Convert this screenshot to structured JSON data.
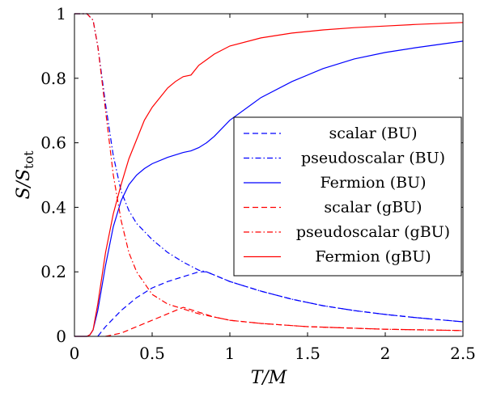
{
  "chart_data": {
    "type": "line",
    "xlabel_main": "T/M",
    "ylabel_main": "S/S",
    "ylabel_sub": "tot",
    "xlim": [
      0,
      2.5
    ],
    "ylim": [
      0,
      1
    ],
    "xticks": [
      "0",
      "0.5",
      "1",
      "1.5",
      "2",
      "2.5"
    ],
    "xtick_values": [
      0,
      0.5,
      1,
      1.5,
      2,
      2.5
    ],
    "yticks": [
      "0",
      "0.2",
      "0.4",
      "0.6",
      "0.8",
      "1"
    ],
    "ytick_values": [
      0,
      0.2,
      0.4,
      0.6,
      0.8,
      1
    ],
    "grid": false,
    "legend_position": "center-right",
    "series": [
      {
        "name": "scalar (BU)",
        "color": "#0000ff",
        "style": "dashed",
        "x": [
          0.15,
          0.2,
          0.3,
          0.4,
          0.5,
          0.6,
          0.7,
          0.8,
          0.85,
          0.9,
          1.0,
          1.2,
          1.4,
          1.6,
          1.8,
          2.0,
          2.2,
          2.5
        ],
        "y": [
          0.0,
          0.03,
          0.08,
          0.12,
          0.15,
          0.17,
          0.185,
          0.2,
          0.2,
          0.19,
          0.17,
          0.14,
          0.115,
          0.095,
          0.08,
          0.068,
          0.058,
          0.045
        ]
      },
      {
        "name": "pseudoscalar (BU)",
        "color": "#0000ff",
        "style": "dashdot",
        "x": [
          0,
          0.08,
          0.12,
          0.15,
          0.2,
          0.25,
          0.3,
          0.35,
          0.4,
          0.5,
          0.6,
          0.7,
          0.8,
          0.85,
          0.9,
          1.0,
          1.2,
          1.4,
          1.6,
          1.8,
          2.0,
          2.2,
          2.5
        ],
        "y": [
          1.0,
          1.0,
          0.98,
          0.9,
          0.72,
          0.56,
          0.45,
          0.39,
          0.35,
          0.3,
          0.26,
          0.23,
          0.205,
          0.2,
          0.19,
          0.17,
          0.14,
          0.115,
          0.095,
          0.08,
          0.068,
          0.058,
          0.045
        ]
      },
      {
        "name": "Fermion (BU)",
        "color": "#0000ff",
        "style": "solid",
        "x": [
          0,
          0.05,
          0.08,
          0.1,
          0.12,
          0.15,
          0.2,
          0.25,
          0.3,
          0.35,
          0.4,
          0.45,
          0.5,
          0.6,
          0.7,
          0.75,
          0.8,
          0.85,
          0.9,
          1.0,
          1.2,
          1.4,
          1.6,
          1.8,
          2.0,
          2.2,
          2.5
        ],
        "y": [
          0,
          0,
          0,
          0.005,
          0.02,
          0.08,
          0.22,
          0.34,
          0.42,
          0.47,
          0.5,
          0.52,
          0.535,
          0.555,
          0.57,
          0.575,
          0.585,
          0.6,
          0.62,
          0.67,
          0.74,
          0.79,
          0.83,
          0.86,
          0.88,
          0.895,
          0.915
        ]
      },
      {
        "name": "scalar (gBU)",
        "color": "#ff0000",
        "style": "dashed",
        "x": [
          0.2,
          0.3,
          0.4,
          0.5,
          0.6,
          0.7,
          0.8,
          0.9,
          1.0,
          1.2,
          1.5,
          2.0,
          2.5
        ],
        "y": [
          0.0,
          0.01,
          0.03,
          0.05,
          0.07,
          0.09,
          0.075,
          0.06,
          0.05,
          0.04,
          0.03,
          0.022,
          0.018
        ]
      },
      {
        "name": "pseudoscalar (gBU)",
        "color": "#ff0000",
        "style": "dashdot",
        "x": [
          0,
          0.08,
          0.12,
          0.15,
          0.2,
          0.25,
          0.3,
          0.35,
          0.4,
          0.5,
          0.6,
          0.7,
          0.8,
          0.9,
          1.0,
          1.2,
          1.5,
          2.0,
          2.5
        ],
        "y": [
          1.0,
          1.0,
          0.98,
          0.9,
          0.7,
          0.5,
          0.36,
          0.26,
          0.2,
          0.13,
          0.1,
          0.085,
          0.07,
          0.06,
          0.05,
          0.04,
          0.03,
          0.022,
          0.018
        ]
      },
      {
        "name": "Fermion (gBU)",
        "color": "#ff0000",
        "style": "solid",
        "x": [
          0,
          0.05,
          0.08,
          0.1,
          0.12,
          0.15,
          0.2,
          0.25,
          0.3,
          0.35,
          0.4,
          0.45,
          0.5,
          0.55,
          0.6,
          0.65,
          0.7,
          0.75,
          0.8,
          0.9,
          1.0,
          1.2,
          1.4,
          1.6,
          1.8,
          2.0,
          2.2,
          2.5
        ],
        "y": [
          0,
          0,
          0,
          0.005,
          0.02,
          0.1,
          0.26,
          0.38,
          0.47,
          0.55,
          0.61,
          0.67,
          0.71,
          0.74,
          0.77,
          0.79,
          0.805,
          0.81,
          0.84,
          0.875,
          0.9,
          0.925,
          0.94,
          0.95,
          0.957,
          0.962,
          0.967,
          0.973
        ]
      }
    ]
  }
}
